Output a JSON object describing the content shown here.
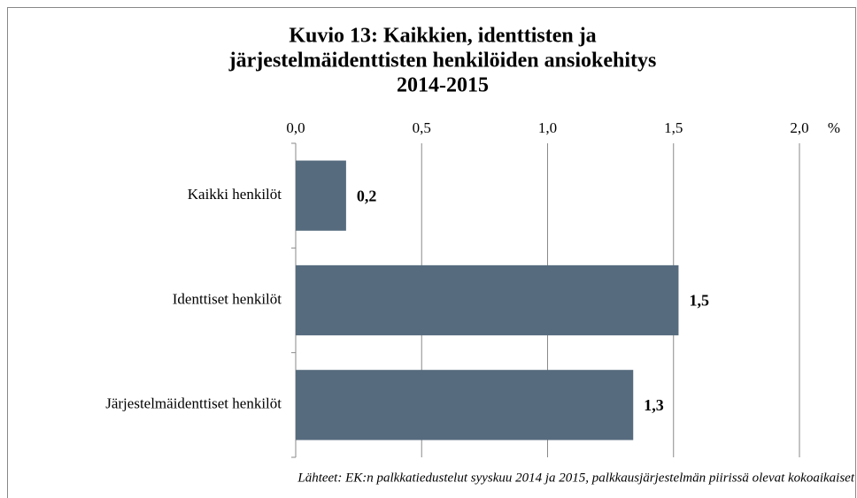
{
  "chart_data": {
    "type": "hbar",
    "title": [
      "Kuvio 13: Kaikkien, identtisten ja",
      "järjestelmäidenttisten henkilöiden ansiokehitys",
      "2014-2015"
    ],
    "categories": [
      "Kaikki henkilöt",
      "Identtiset henkilöt",
      "Järjestelmäidenttiset henkilöt"
    ],
    "values": [
      0.2,
      1.52,
      1.34
    ],
    "value_labels": [
      "0,2",
      "1,5",
      "1,3"
    ],
    "color": "#566b7e",
    "xlabel": "%",
    "xlim": [
      0,
      2
    ],
    "xticks": [
      {
        "value": 0,
        "label": "0,0"
      },
      {
        "value": 0.5,
        "label": "0,5"
      },
      {
        "value": 1,
        "label": "1,0"
      },
      {
        "value": 1.5,
        "label": "1,5"
      },
      {
        "value": 2,
        "label": "2,0"
      }
    ],
    "grid": true,
    "source": "Lähteet: EK:n palkkatiedustelut syyskuu 2014 ja  2015, palkkausjärjestelmän piirissä olevat kokoaikaiset"
  }
}
